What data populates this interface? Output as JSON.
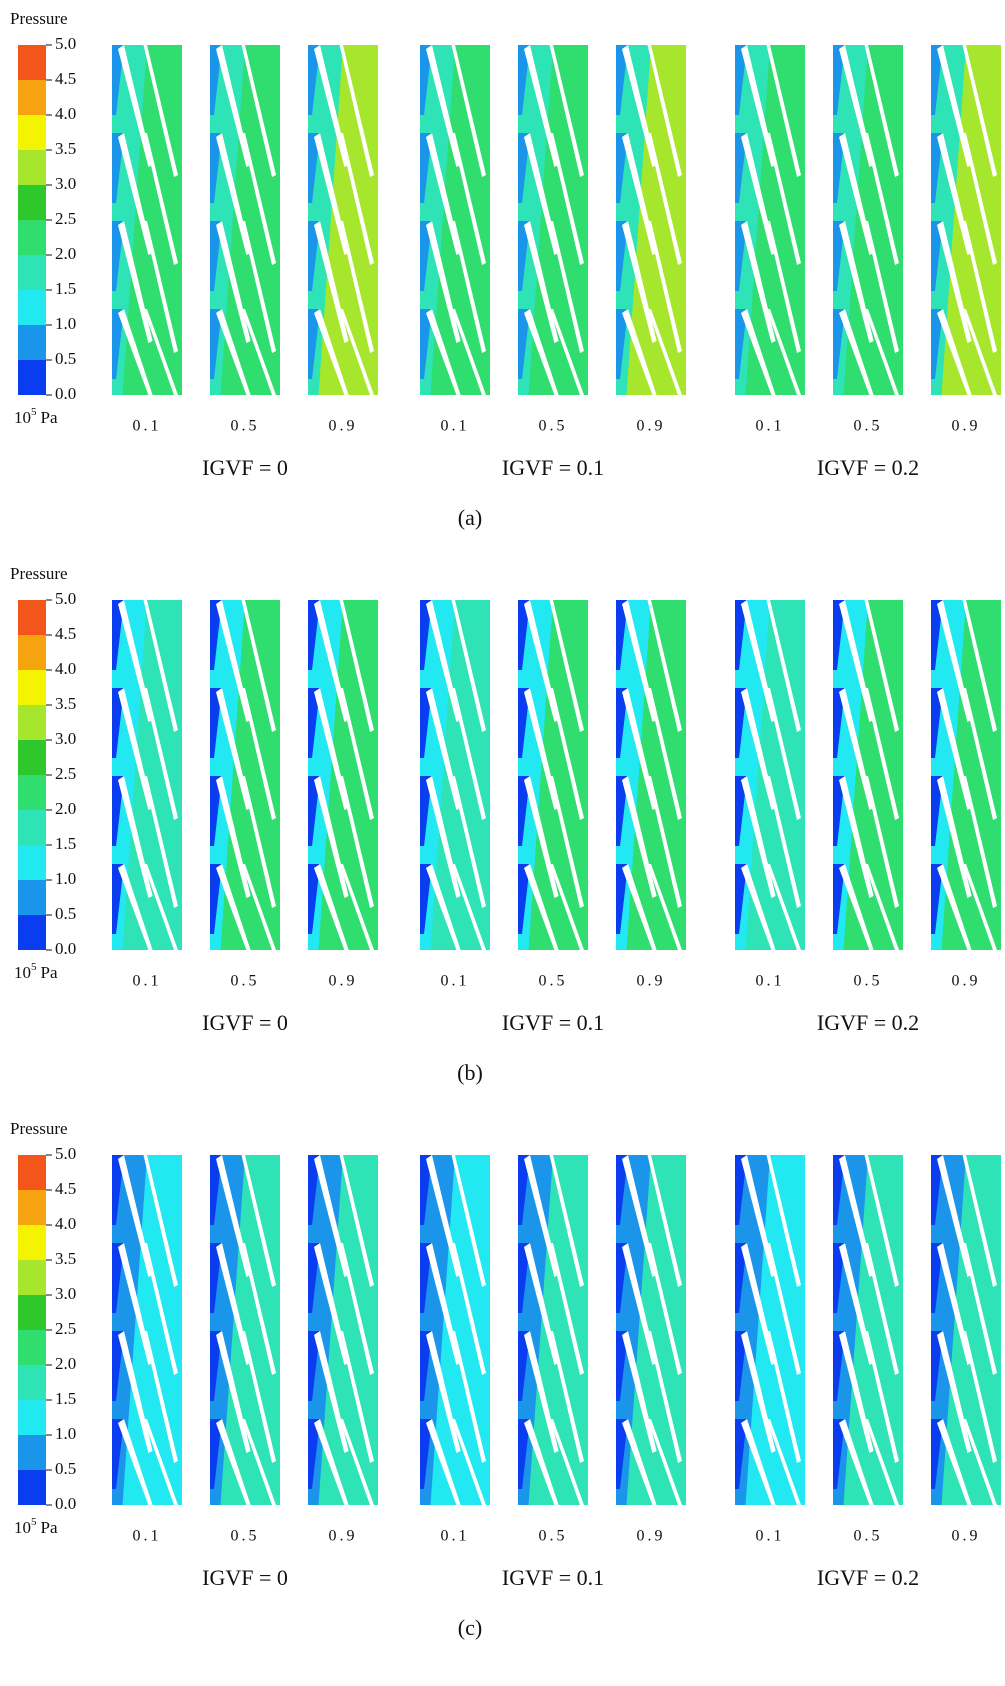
{
  "panels": [
    {
      "caption": "(a)",
      "legend": {
        "title": "Pressure",
        "ticks": [
          "5.0",
          "4.5",
          "4.0",
          "3.5",
          "3.0",
          "2.5",
          "2.0",
          "1.5",
          "1.0",
          "0.5",
          "0.0"
        ],
        "unit_base": "10",
        "unit_exponent": "5",
        "unit": "Pa"
      },
      "groups": [
        {
          "caption": "IGVF = 0",
          "strips": [
            "0.1",
            "0.5",
            "0.9"
          ]
        },
        {
          "caption": "IGVF = 0.1",
          "strips": [
            "0.1",
            "0.5",
            "0.9"
          ]
        },
        {
          "caption": "IGVF = 0.2",
          "strips": [
            "0.1",
            "0.5",
            "0.9"
          ]
        }
      ]
    },
    {
      "caption": "(b)",
      "legend": {
        "title": "Pressure",
        "ticks": [
          "5.0",
          "4.5",
          "4.0",
          "3.5",
          "3.0",
          "2.5",
          "2.0",
          "1.5",
          "1.0",
          "0.5",
          "0.0"
        ],
        "unit_base": "10",
        "unit_exponent": "5",
        "unit": "Pa"
      },
      "groups": [
        {
          "caption": "IGVF = 0",
          "strips": [
            "0.1",
            "0.5",
            "0.9"
          ]
        },
        {
          "caption": "IGVF = 0.1",
          "strips": [
            "0.1",
            "0.5",
            "0.9"
          ]
        },
        {
          "caption": "IGVF = 0.2",
          "strips": [
            "0.1",
            "0.5",
            "0.9"
          ]
        }
      ]
    },
    {
      "caption": "(c)",
      "legend": {
        "title": "Pressure",
        "ticks": [
          "5.0",
          "4.5",
          "4.0",
          "3.5",
          "3.0",
          "2.5",
          "2.0",
          "1.5",
          "1.0",
          "0.5",
          "0.0"
        ],
        "unit_base": "10",
        "unit_exponent": "5",
        "unit": "Pa"
      },
      "groups": [
        {
          "caption": "IGVF = 0",
          "strips": [
            "0.1",
            "0.5",
            "0.9"
          ]
        },
        {
          "caption": "IGVF = 0.1",
          "strips": [
            "0.1",
            "0.5",
            "0.9"
          ]
        },
        {
          "caption": "IGVF = 0.2",
          "strips": [
            "0.1",
            "0.5",
            "0.9"
          ]
        }
      ]
    }
  ]
}
